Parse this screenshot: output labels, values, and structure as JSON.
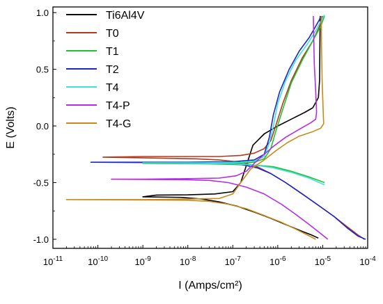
{
  "chart_data": {
    "type": "line",
    "title": "",
    "xlabel": "I (Amps/cm²)",
    "ylabel": "E (Volts)",
    "x_scale": "log",
    "xlim": [
      1e-11,
      0.0001
    ],
    "ylim": [
      -1.08,
      1.05
    ],
    "x_ticks": [
      {
        "v": 1e-11,
        "m": "10",
        "e": "-11"
      },
      {
        "v": 1e-10,
        "m": "10",
        "e": "-10"
      },
      {
        "v": 1e-09,
        "m": "10",
        "e": "-9"
      },
      {
        "v": 1e-08,
        "m": "10",
        "e": "-8"
      },
      {
        "v": 1e-07,
        "m": "10",
        "e": "-7"
      },
      {
        "v": 1e-06,
        "m": "10",
        "e": "-6"
      },
      {
        "v": 1e-05,
        "m": "10",
        "e": "-5"
      },
      {
        "v": 0.0001,
        "m": "10",
        "e": "-4"
      }
    ],
    "y_ticks": [
      {
        "v": 1.0,
        "label": "1.0"
      },
      {
        "v": 0.5,
        "label": "0.5"
      },
      {
        "v": 0.0,
        "label": "0.0"
      },
      {
        "v": -0.5,
        "label": "-0.5"
      },
      {
        "v": -1.0,
        "label": "-1.0"
      }
    ],
    "grid": false,
    "legend_position": "top-left",
    "series": [
      {
        "name": "Ti6Al4V",
        "color": "#000000",
        "points": [
          [
            8e-06,
            -0.99
          ],
          [
            5.5e-06,
            -0.96
          ],
          [
            3e-06,
            -0.92
          ],
          [
            1.5e-06,
            -0.87
          ],
          [
            6.5e-07,
            -0.81
          ],
          [
            3e-07,
            -0.76
          ],
          [
            1.3e-07,
            -0.71
          ],
          [
            5e-08,
            -0.67
          ],
          [
            2e-08,
            -0.645
          ],
          [
            7e-09,
            -0.63
          ],
          [
            1e-09,
            -0.625
          ],
          [
            2e-09,
            -0.61
          ],
          [
            1e-08,
            -0.608
          ],
          [
            4e-08,
            -0.6
          ],
          [
            1e-07,
            -0.58
          ],
          [
            1.5e-07,
            -0.5
          ],
          [
            2e-07,
            -0.35
          ],
          [
            2.8e-07,
            -0.17
          ],
          [
            5e-07,
            -0.07
          ],
          [
            1e-06,
            0.0
          ],
          [
            2e-06,
            0.06
          ],
          [
            4e-06,
            0.12
          ],
          [
            6e-06,
            0.16
          ],
          [
            8e-06,
            0.25
          ],
          [
            8.5e-06,
            0.4
          ],
          [
            8.6e-06,
            0.6
          ],
          [
            8.7e-06,
            0.8
          ],
          [
            8.8e-06,
            0.97
          ]
        ]
      },
      {
        "name": "T0",
        "color": "#b03a1e",
        "points": [
          [
            8.5e-05,
            -1.0
          ],
          [
            6e-05,
            -0.96
          ],
          [
            3.5e-05,
            -0.89
          ],
          [
            1.8e-05,
            -0.8
          ],
          [
            8e-06,
            -0.7
          ],
          [
            3.5e-06,
            -0.6
          ],
          [
            1.5e-06,
            -0.5
          ],
          [
            7e-07,
            -0.42
          ],
          [
            3.5e-07,
            -0.36
          ],
          [
            1.5e-07,
            -0.32
          ],
          [
            5e-08,
            -0.3
          ],
          [
            1.5e-08,
            -0.29
          ],
          [
            1.3e-10,
            -0.275
          ],
          [
            1e-09,
            -0.27
          ],
          [
            1e-08,
            -0.27
          ],
          [
            5e-08,
            -0.27
          ],
          [
            1.5e-07,
            -0.26
          ],
          [
            3e-07,
            -0.24
          ],
          [
            5e-07,
            -0.2
          ],
          [
            7e-07,
            -0.13
          ],
          [
            9e-07,
            0.0
          ],
          [
            1.3e-06,
            0.2
          ],
          [
            2e-06,
            0.4
          ],
          [
            3.5e-06,
            0.6
          ],
          [
            6e-06,
            0.75
          ],
          [
            8.5e-06,
            0.88
          ],
          [
            9.5e-06,
            0.94
          ],
          [
            1e-05,
            0.97
          ]
        ]
      },
      {
        "name": "T1",
        "color": "#22c132",
        "points": [
          [
            1.1e-05,
            -0.5
          ],
          [
            5e-06,
            -0.45
          ],
          [
            2e-06,
            -0.4
          ],
          [
            8e-07,
            -0.36
          ],
          [
            3e-07,
            -0.345
          ],
          [
            1e-07,
            -0.34
          ],
          [
            3e-08,
            -0.335
          ],
          [
            1e-09,
            -0.33
          ],
          [
            3e-08,
            -0.33
          ],
          [
            1.5e-07,
            -0.33
          ],
          [
            3e-07,
            -0.32
          ],
          [
            5e-07,
            -0.29
          ],
          [
            7e-07,
            -0.2
          ],
          [
            9e-07,
            -0.05
          ],
          [
            1.3e-06,
            0.15
          ],
          [
            2e-06,
            0.38
          ],
          [
            3.5e-06,
            0.58
          ],
          [
            6e-06,
            0.75
          ],
          [
            9e-06,
            0.88
          ],
          [
            1.1e-05,
            0.97
          ]
        ]
      },
      {
        "name": "T2",
        "color": "#1c26c8",
        "points": [
          [
            9e-05,
            -1.0
          ],
          [
            6e-05,
            -0.97
          ],
          [
            3.5e-05,
            -0.9
          ],
          [
            1.8e-05,
            -0.8
          ],
          [
            8e-06,
            -0.7
          ],
          [
            3.5e-06,
            -0.6
          ],
          [
            1.5e-06,
            -0.5
          ],
          [
            7e-07,
            -0.42
          ],
          [
            3.5e-07,
            -0.37
          ],
          [
            1.5e-07,
            -0.34
          ],
          [
            5e-08,
            -0.33
          ],
          [
            1e-08,
            -0.325
          ],
          [
            7e-11,
            -0.32
          ],
          [
            1e-09,
            -0.32
          ],
          [
            1e-08,
            -0.32
          ],
          [
            1e-07,
            -0.315
          ],
          [
            3e-07,
            -0.3
          ],
          [
            5e-07,
            -0.25
          ],
          [
            6.5e-07,
            -0.1
          ],
          [
            8e-07,
            0.1
          ],
          [
            1.1e-06,
            0.3
          ],
          [
            1.8e-06,
            0.5
          ],
          [
            3e-06,
            0.66
          ],
          [
            5e-06,
            0.78
          ],
          [
            7e-06,
            0.88
          ],
          [
            8.5e-06,
            0.94
          ],
          [
            9e-06,
            0.97
          ]
        ]
      },
      {
        "name": "T4",
        "color": "#3ee0d8",
        "points": [
          [
            1.1e-05,
            -0.52
          ],
          [
            5e-06,
            -0.46
          ],
          [
            2e-06,
            -0.41
          ],
          [
            8e-07,
            -0.37
          ],
          [
            3e-07,
            -0.345
          ],
          [
            1e-07,
            -0.335
          ],
          [
            2e-08,
            -0.33
          ],
          [
            1e-09,
            -0.325
          ],
          [
            2e-08,
            -0.325
          ],
          [
            1.5e-07,
            -0.32
          ],
          [
            3e-07,
            -0.31
          ],
          [
            5e-07,
            -0.27
          ],
          [
            6.5e-07,
            -0.15
          ],
          [
            8e-07,
            0.0
          ],
          [
            1e-06,
            0.2
          ],
          [
            1.5e-06,
            0.4
          ],
          [
            2.5e-06,
            0.58
          ],
          [
            4.5e-06,
            0.72
          ],
          [
            7e-06,
            0.84
          ],
          [
            9.5e-06,
            0.94
          ],
          [
            1.1e-05,
            0.98
          ]
        ]
      },
      {
        "name": "T4-P",
        "color": "#b52ce8",
        "points": [
          [
            1.3e-05,
            -1.0
          ],
          [
            9e-06,
            -0.95
          ],
          [
            5e-06,
            -0.87
          ],
          [
            2.5e-06,
            -0.78
          ],
          [
            1.2e-06,
            -0.69
          ],
          [
            5e-07,
            -0.6
          ],
          [
            2e-07,
            -0.54
          ],
          [
            8e-08,
            -0.5
          ],
          [
            3e-08,
            -0.48
          ],
          [
            1e-08,
            -0.475
          ],
          [
            2e-10,
            -0.47
          ],
          [
            1e-09,
            -0.47
          ],
          [
            1e-08,
            -0.465
          ],
          [
            5e-08,
            -0.46
          ],
          [
            1.2e-07,
            -0.44
          ],
          [
            2e-07,
            -0.4
          ],
          [
            3e-07,
            -0.33
          ],
          [
            5e-07,
            -0.25
          ],
          [
            8e-07,
            -0.18
          ],
          [
            1.5e-06,
            -0.1
          ],
          [
            3e-06,
            -0.03
          ],
          [
            5.5e-06,
            0.03
          ],
          [
            7e-06,
            0.06
          ],
          [
            7.3e-06,
            0.12
          ],
          [
            7e-06,
            0.3
          ],
          [
            6.5e-06,
            0.55
          ],
          [
            6.3e-06,
            0.8
          ],
          [
            6.2e-06,
            0.97
          ]
        ]
      },
      {
        "name": "T4-G",
        "color": "#c68a1a",
        "points": [
          [
            7e-06,
            -1.0
          ],
          [
            4.5e-06,
            -0.96
          ],
          [
            2.5e-06,
            -0.91
          ],
          [
            1.2e-06,
            -0.85
          ],
          [
            5e-07,
            -0.79
          ],
          [
            2e-07,
            -0.73
          ],
          [
            8e-08,
            -0.69
          ],
          [
            3e-08,
            -0.665
          ],
          [
            1e-08,
            -0.655
          ],
          [
            2e-11,
            -0.65
          ],
          [
            1e-10,
            -0.65
          ],
          [
            1e-09,
            -0.65
          ],
          [
            1e-08,
            -0.645
          ],
          [
            5e-08,
            -0.64
          ],
          [
            1e-07,
            -0.6
          ],
          [
            1.5e-07,
            -0.5
          ],
          [
            2.5e-07,
            -0.38
          ],
          [
            5e-07,
            -0.3
          ],
          [
            9e-07,
            -0.22
          ],
          [
            1.6e-06,
            -0.15
          ],
          [
            3e-06,
            -0.09
          ],
          [
            6e-06,
            -0.05
          ],
          [
            9e-06,
            -0.02
          ],
          [
            1.05e-05,
            0.02
          ],
          [
            1.02e-05,
            0.15
          ],
          [
            9.7e-06,
            0.4
          ],
          [
            9.4e-06,
            0.7
          ],
          [
            9.3e-06,
            0.97
          ]
        ]
      }
    ]
  }
}
